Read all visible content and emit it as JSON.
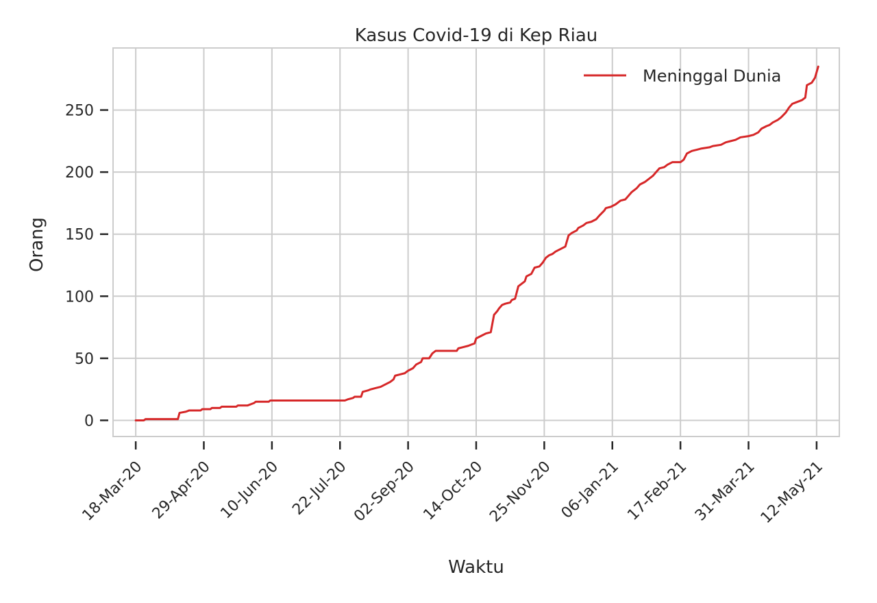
{
  "chart_data": {
    "type": "line",
    "title": "Kasus Covid-19 di Kep Riau",
    "xlabel": "Waktu",
    "ylabel": "Orang",
    "x_type": "date",
    "xlim": [
      "2020-03-04",
      "2021-05-26"
    ],
    "ylim": [
      -13,
      300
    ],
    "x_ticks": [
      {
        "date": "2020-03-18",
        "label": "18-Mar-20"
      },
      {
        "date": "2020-04-29",
        "label": "29-Apr-20"
      },
      {
        "date": "2020-06-10",
        "label": "10-Jun-20"
      },
      {
        "date": "2020-07-22",
        "label": "22-Jul-20"
      },
      {
        "date": "2020-09-02",
        "label": "02-Sep-20"
      },
      {
        "date": "2020-10-14",
        "label": "14-Oct-20"
      },
      {
        "date": "2020-11-25",
        "label": "25-Nov-20"
      },
      {
        "date": "2021-01-06",
        "label": "06-Jan-21"
      },
      {
        "date": "2021-02-17",
        "label": "17-Feb-21"
      },
      {
        "date": "2021-03-31",
        "label": "31-Mar-21"
      },
      {
        "date": "2021-05-12",
        "label": "12-May-21"
      }
    ],
    "y_ticks": [
      0,
      50,
      100,
      150,
      200,
      250
    ],
    "grid": true,
    "legend_position": "top-right",
    "series": [
      {
        "name": "Meninggal Dunia",
        "color": "#d62728",
        "points": [
          [
            "2020-03-18",
            0
          ],
          [
            "2020-03-23",
            0
          ],
          [
            "2020-03-24",
            1
          ],
          [
            "2020-04-13",
            1
          ],
          [
            "2020-04-14",
            6
          ],
          [
            "2020-04-18",
            7
          ],
          [
            "2020-04-20",
            8
          ],
          [
            "2020-04-27",
            8
          ],
          [
            "2020-04-28",
            9
          ],
          [
            "2020-05-03",
            9
          ],
          [
            "2020-05-04",
            10
          ],
          [
            "2020-05-09",
            10
          ],
          [
            "2020-05-10",
            11
          ],
          [
            "2020-05-19",
            11
          ],
          [
            "2020-05-20",
            12
          ],
          [
            "2020-05-26",
            12
          ],
          [
            "2020-05-30",
            14
          ],
          [
            "2020-05-31",
            15
          ],
          [
            "2020-06-08",
            15
          ],
          [
            "2020-06-09",
            16
          ],
          [
            "2020-07-25",
            16
          ],
          [
            "2020-07-27",
            17
          ],
          [
            "2020-07-30",
            18
          ],
          [
            "2020-07-31",
            19
          ],
          [
            "2020-08-04",
            19
          ],
          [
            "2020-08-05",
            23
          ],
          [
            "2020-08-08",
            24
          ],
          [
            "2020-08-10",
            25
          ],
          [
            "2020-08-13",
            26
          ],
          [
            "2020-08-16",
            27
          ],
          [
            "2020-08-19",
            29
          ],
          [
            "2020-08-22",
            31
          ],
          [
            "2020-08-24",
            33
          ],
          [
            "2020-08-25",
            36
          ],
          [
            "2020-08-28",
            37
          ],
          [
            "2020-08-31",
            38
          ],
          [
            "2020-09-02",
            40
          ],
          [
            "2020-09-05",
            42
          ],
          [
            "2020-09-07",
            45
          ],
          [
            "2020-09-10",
            47
          ],
          [
            "2020-09-11",
            50
          ],
          [
            "2020-09-15",
            50
          ],
          [
            "2020-09-17",
            54
          ],
          [
            "2020-09-19",
            56
          ],
          [
            "2020-10-02",
            56
          ],
          [
            "2020-10-03",
            58
          ],
          [
            "2020-10-06",
            59
          ],
          [
            "2020-10-09",
            60
          ],
          [
            "2020-10-13",
            62
          ],
          [
            "2020-10-14",
            66
          ],
          [
            "2020-10-17",
            68
          ],
          [
            "2020-10-20",
            70
          ],
          [
            "2020-10-23",
            71
          ],
          [
            "2020-10-25",
            85
          ],
          [
            "2020-10-27",
            88
          ],
          [
            "2020-10-28",
            90
          ],
          [
            "2020-10-30",
            93
          ],
          [
            "2020-11-01",
            94
          ],
          [
            "2020-11-04",
            95
          ],
          [
            "2020-11-05",
            97
          ],
          [
            "2020-11-07",
            98
          ],
          [
            "2020-11-09",
            108
          ],
          [
            "2020-11-11",
            110
          ],
          [
            "2020-11-13",
            112
          ],
          [
            "2020-11-14",
            116
          ],
          [
            "2020-11-17",
            118
          ],
          [
            "2020-11-19",
            123
          ],
          [
            "2020-11-22",
            124
          ],
          [
            "2020-11-24",
            127
          ],
          [
            "2020-11-26",
            131
          ],
          [
            "2020-11-28",
            133
          ],
          [
            "2020-11-30",
            134
          ],
          [
            "2020-12-02",
            136
          ],
          [
            "2020-12-05",
            138
          ],
          [
            "2020-12-08",
            140
          ],
          [
            "2020-12-10",
            149
          ],
          [
            "2020-12-12",
            151
          ],
          [
            "2020-12-15",
            153
          ],
          [
            "2020-12-16",
            155
          ],
          [
            "2020-12-19",
            157
          ],
          [
            "2020-12-21",
            159
          ],
          [
            "2020-12-24",
            160
          ],
          [
            "2020-12-27",
            162
          ],
          [
            "2020-12-29",
            165
          ],
          [
            "2021-01-01",
            169
          ],
          [
            "2021-01-02",
            171
          ],
          [
            "2021-01-05",
            172
          ],
          [
            "2021-01-08",
            174
          ],
          [
            "2021-01-11",
            177
          ],
          [
            "2021-01-14",
            178
          ],
          [
            "2021-01-16",
            181
          ],
          [
            "2021-01-18",
            184
          ],
          [
            "2021-01-21",
            187
          ],
          [
            "2021-01-23",
            190
          ],
          [
            "2021-01-26",
            192
          ],
          [
            "2021-01-28",
            194
          ],
          [
            "2021-01-31",
            197
          ],
          [
            "2021-02-02",
            200
          ],
          [
            "2021-02-04",
            203
          ],
          [
            "2021-02-07",
            204
          ],
          [
            "2021-02-09",
            206
          ],
          [
            "2021-02-12",
            208
          ],
          [
            "2021-02-17",
            208
          ],
          [
            "2021-02-19",
            210
          ],
          [
            "2021-02-21",
            215
          ],
          [
            "2021-02-24",
            217
          ],
          [
            "2021-02-27",
            218
          ],
          [
            "2021-03-02",
            219
          ],
          [
            "2021-03-07",
            220
          ],
          [
            "2021-03-09",
            221
          ],
          [
            "2021-03-14",
            222
          ],
          [
            "2021-03-17",
            224
          ],
          [
            "2021-03-20",
            225
          ],
          [
            "2021-03-23",
            226
          ],
          [
            "2021-03-26",
            228
          ],
          [
            "2021-03-31",
            229
          ],
          [
            "2021-04-03",
            230
          ],
          [
            "2021-04-06",
            232
          ],
          [
            "2021-04-08",
            235
          ],
          [
            "2021-04-11",
            237
          ],
          [
            "2021-04-13",
            238
          ],
          [
            "2021-04-15",
            240
          ],
          [
            "2021-04-18",
            242
          ],
          [
            "2021-04-20",
            244
          ],
          [
            "2021-04-23",
            248
          ],
          [
            "2021-04-25",
            252
          ],
          [
            "2021-04-27",
            255
          ],
          [
            "2021-04-29",
            256
          ],
          [
            "2021-05-03",
            258
          ],
          [
            "2021-05-05",
            260
          ],
          [
            "2021-05-06",
            270
          ],
          [
            "2021-05-09",
            272
          ],
          [
            "2021-05-11",
            276
          ],
          [
            "2021-05-13",
            285
          ]
        ]
      }
    ]
  },
  "colors": {
    "background": "#ffffff",
    "grid": "#cccccc",
    "axis": "#cccccc",
    "tick": "#262626",
    "text": "#262626",
    "line": "#d62728"
  }
}
